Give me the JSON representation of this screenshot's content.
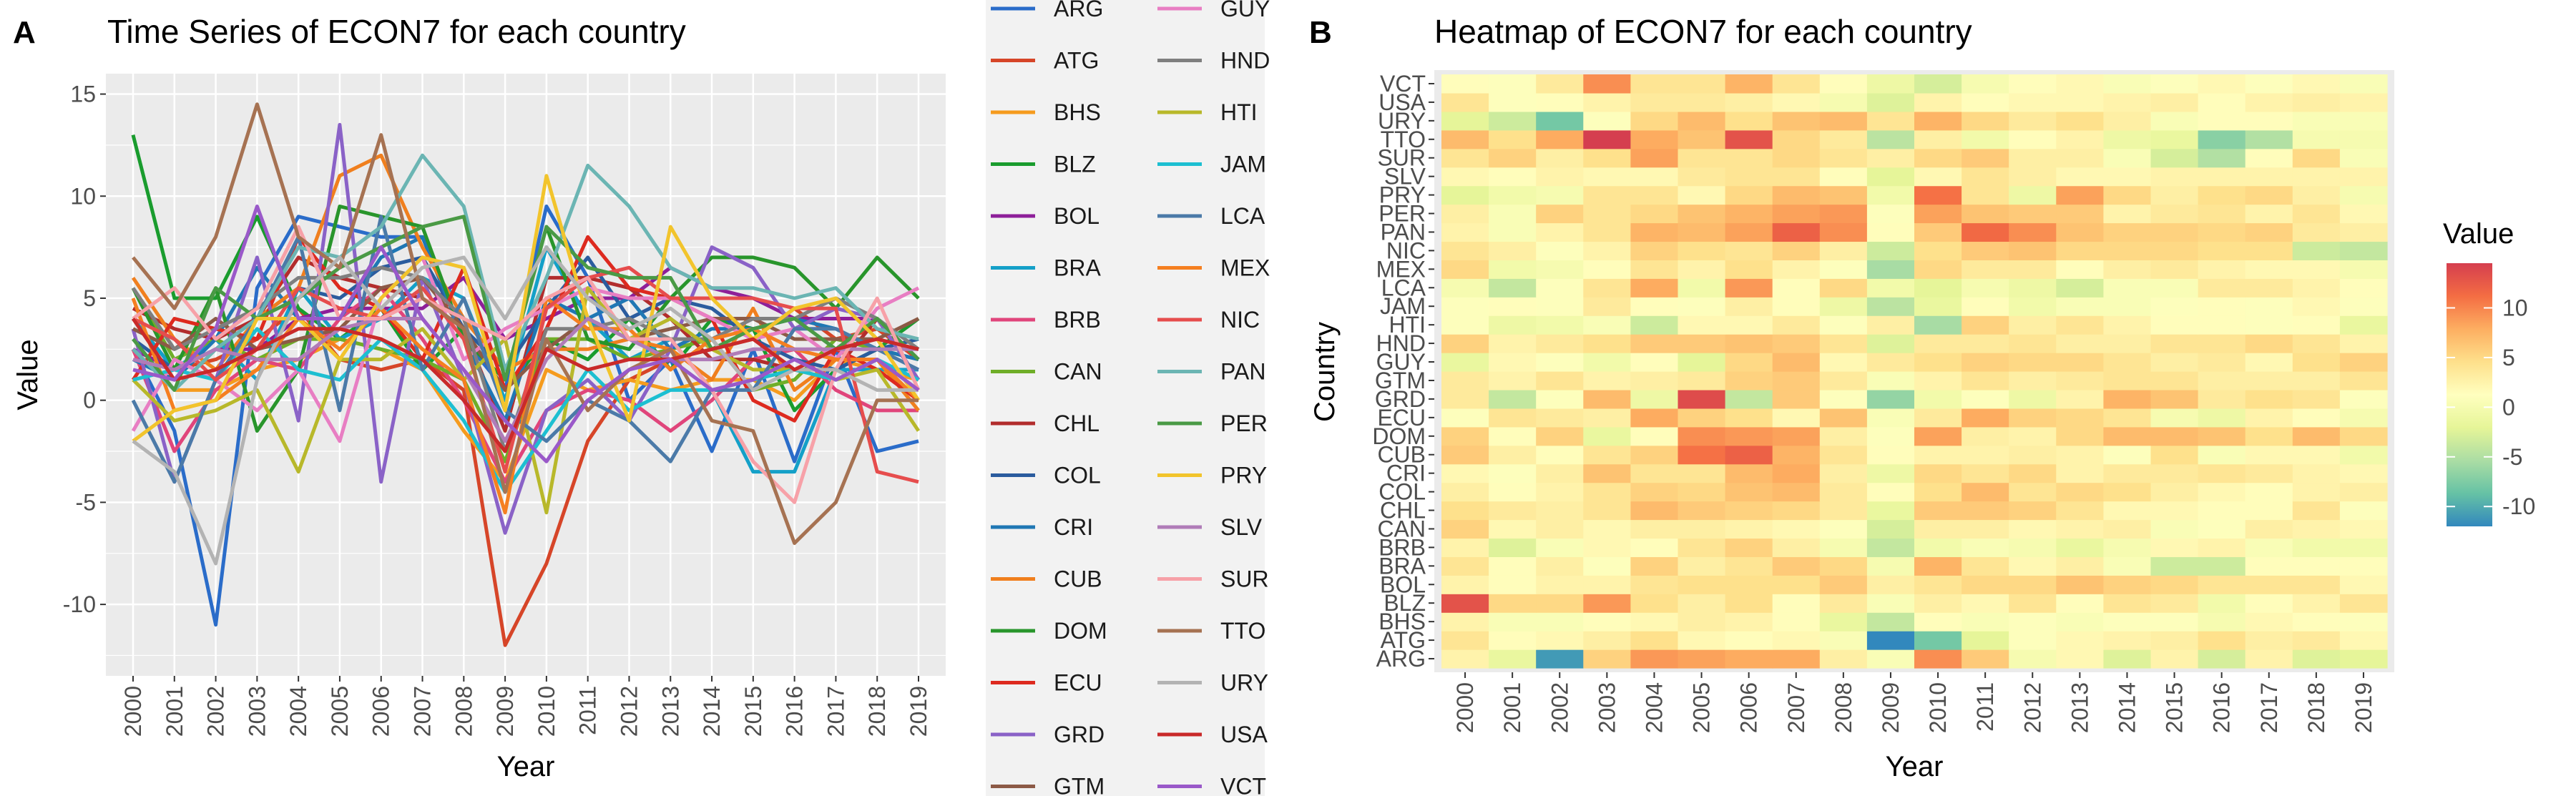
{
  "panel_a": {
    "letter": "A",
    "title": "Time Series of ECON7 for each country",
    "xlabel": "Year",
    "ylabel": "Value"
  },
  "panel_b": {
    "letter": "B",
    "title": "Heatmap of ECON7 for each country",
    "xlabel": "Year",
    "ylabel": "Country",
    "colorbar_title": "Value"
  },
  "colors": {
    "panel_bg": "#ebebeb",
    "grid": "#ffffff",
    "heat_scale": [
      "#3288bd",
      "#66c2a5",
      "#abdda4",
      "#e6f598",
      "#ffffbf",
      "#fee08b",
      "#fdae61",
      "#f46d43",
      "#d53e4f"
    ]
  },
  "chart_data": [
    {
      "type": "line",
      "title": "Time Series of ECON7 for each country",
      "xlabel": "Year",
      "ylabel": "Value",
      "x": [
        2000,
        2001,
        2002,
        2003,
        2004,
        2005,
        2006,
        2007,
        2008,
        2009,
        2010,
        2011,
        2012,
        2013,
        2014,
        2015,
        2016,
        2017,
        2018,
        2019
      ],
      "xlim": [
        2000,
        2019
      ],
      "ylim": [
        -13.5,
        16
      ],
      "yticks": [
        -10,
        -5,
        0,
        5,
        10,
        15
      ],
      "grid": true,
      "legend_position": "right",
      "series": [
        {
          "name": "ARG",
          "color": "#2a6cc9",
          "values": [
            2.5,
            -1.5,
            -11.0,
            5.5,
            9.0,
            8.5,
            8.0,
            8.0,
            3.0,
            0.5,
            9.5,
            6.0,
            0.0,
            2.0,
            -2.5,
            2.5,
            -3.0,
            2.5,
            -2.5,
            -2.0
          ]
        },
        {
          "name": "ATG",
          "color": "#d64528",
          "values": [
            4.0,
            1.5,
            2.0,
            3.0,
            4.5,
            2.0,
            1.5,
            2.0,
            0.5,
            -12.0,
            -8.0,
            -2.0,
            1.0,
            2.0,
            2.5,
            3.0,
            4.5,
            3.0,
            3.5,
            2.0
          ]
        },
        {
          "name": "BHS",
          "color": "#f59b1e",
          "values": [
            2.5,
            0.5,
            0.5,
            1.5,
            2.0,
            3.0,
            2.5,
            1.5,
            -1.5,
            -4.0,
            1.5,
            0.5,
            1.0,
            0.5,
            1.0,
            1.0,
            0.0,
            2.0,
            1.5,
            1.0
          ]
        },
        {
          "name": "BLZ",
          "color": "#1a9c2e",
          "values": [
            13.0,
            5.0,
            5.0,
            9.0,
            4.5,
            3.0,
            4.5,
            1.5,
            3.5,
            0.5,
            3.0,
            2.0,
            4.0,
            1.5,
            4.0,
            3.5,
            -0.5,
            1.5,
            2.5,
            4.0
          ]
        },
        {
          "name": "BOL",
          "color": "#8e1f99",
          "values": [
            2.5,
            1.5,
            2.5,
            2.5,
            4.0,
            4.5,
            4.5,
            4.5,
            6.0,
            3.0,
            4.0,
            5.0,
            5.0,
            6.5,
            5.5,
            5.0,
            4.0,
            4.0,
            4.0,
            2.0
          ]
        },
        {
          "name": "BRA",
          "color": "#14a0c8",
          "values": [
            4.0,
            1.5,
            3.0,
            1.0,
            5.5,
            3.0,
            4.0,
            6.0,
            5.0,
            0.0,
            7.5,
            4.0,
            2.0,
            3.0,
            0.5,
            -3.5,
            -3.5,
            1.5,
            1.5,
            1.5
          ]
        },
        {
          "name": "BRB",
          "color": "#e0457b",
          "values": [
            2.5,
            -2.5,
            0.5,
            2.0,
            1.5,
            4.0,
            5.5,
            3.0,
            0.0,
            -4.0,
            -0.5,
            0.5,
            0.0,
            -1.5,
            0.0,
            2.0,
            2.5,
            0.5,
            -0.5,
            -0.5
          ]
        },
        {
          "name": "CAN",
          "color": "#6fae28",
          "values": [
            5.5,
            2.0,
            3.0,
            2.0,
            3.0,
            3.0,
            2.5,
            2.0,
            1.0,
            -3.0,
            3.0,
            3.0,
            2.0,
            2.5,
            3.0,
            0.5,
            1.0,
            3.0,
            2.5,
            2.0
          ]
        },
        {
          "name": "CHL",
          "color": "#b22d2d",
          "values": [
            4.5,
            3.5,
            3.0,
            4.0,
            7.0,
            6.0,
            5.5,
            5.0,
            3.5,
            -1.5,
            6.0,
            6.0,
            5.5,
            4.0,
            2.0,
            2.0,
            1.5,
            1.5,
            4.0,
            1.0
          ]
        },
        {
          "name": "COL",
          "color": "#2b5c9e",
          "values": [
            3.0,
            1.5,
            2.5,
            4.0,
            5.5,
            5.0,
            6.5,
            7.0,
            3.5,
            1.5,
            4.5,
            7.0,
            4.0,
            5.0,
            4.5,
            3.0,
            2.0,
            1.5,
            2.5,
            3.0
          ]
        },
        {
          "name": "CRI",
          "color": "#1f77b4",
          "values": [
            2.0,
            1.0,
            3.0,
            6.5,
            4.0,
            4.0,
            7.0,
            8.0,
            3.0,
            -1.0,
            5.0,
            4.0,
            5.0,
            2.5,
            3.5,
            3.5,
            4.0,
            3.5,
            2.5,
            2.0
          ]
        },
        {
          "name": "CUB",
          "color": "#f07f1e",
          "values": [
            6.0,
            3.0,
            1.5,
            4.0,
            5.5,
            11.0,
            12.0,
            7.5,
            4.0,
            1.5,
            2.5,
            2.5,
            3.0,
            2.5,
            1.0,
            4.5,
            0.5,
            2.0,
            2.0,
            -0.5
          ]
        },
        {
          "name": "DOM",
          "color": "#28952b",
          "values": [
            5.5,
            1.5,
            5.5,
            -1.5,
            1.5,
            9.5,
            9.0,
            8.5,
            3.0,
            1.0,
            8.5,
            3.0,
            2.5,
            5.0,
            7.0,
            7.0,
            6.5,
            4.5,
            7.0,
            5.0
          ]
        },
        {
          "name": "ECU",
          "color": "#dd2a1f",
          "values": [
            1.0,
            4.0,
            3.5,
            3.0,
            8.0,
            5.5,
            4.5,
            2.0,
            6.5,
            0.5,
            3.5,
            8.0,
            5.5,
            5.0,
            4.0,
            0.0,
            -1.0,
            2.5,
            1.5,
            0.0
          ]
        },
        {
          "name": "GRD",
          "color": "#8a62c7",
          "values": [
            3.5,
            -4.0,
            1.0,
            7.0,
            -1.0,
            13.5,
            -4.0,
            6.0,
            1.0,
            -6.5,
            -0.5,
            1.0,
            -1.0,
            2.5,
            7.5,
            6.5,
            3.5,
            4.5,
            4.0,
            1.0
          ]
        },
        {
          "name": "GTM",
          "color": "#8c5a46",
          "values": [
            3.5,
            2.5,
            4.0,
            2.5,
            3.0,
            3.5,
            5.5,
            6.0,
            3.5,
            0.5,
            2.5,
            4.0,
            3.0,
            3.5,
            4.0,
            4.0,
            3.0,
            3.0,
            3.0,
            4.0
          ]
        },
        {
          "name": "GUY",
          "color": "#e87ec3",
          "values": [
            -1.5,
            2.0,
            1.0,
            -0.5,
            1.5,
            -2.0,
            5.0,
            7.0,
            2.0,
            3.5,
            4.5,
            5.5,
            5.0,
            5.0,
            4.0,
            3.0,
            3.5,
            2.0,
            4.5,
            5.5
          ]
        },
        {
          "name": "HND",
          "color": "#7f7f7f",
          "values": [
            5.5,
            2.5,
            3.5,
            4.5,
            6.0,
            6.0,
            6.5,
            6.0,
            4.0,
            -2.5,
            3.5,
            3.5,
            4.0,
            3.0,
            3.0,
            4.0,
            4.0,
            5.0,
            4.0,
            2.5
          ]
        },
        {
          "name": "HTI",
          "color": "#b8b82a",
          "values": [
            1.0,
            -1.0,
            -0.5,
            0.5,
            -3.5,
            2.0,
            2.0,
            3.5,
            1.0,
            3.0,
            -5.5,
            5.5,
            3.0,
            4.0,
            2.5,
            1.5,
            1.5,
            1.0,
            1.5,
            -1.5
          ]
        },
        {
          "name": "JAM",
          "color": "#1dbfd1",
          "values": [
            1.0,
            1.5,
            1.0,
            3.5,
            1.5,
            1.0,
            3.0,
            1.5,
            -1.0,
            -4.5,
            -1.5,
            1.5,
            -0.5,
            0.5,
            0.5,
            1.0,
            1.5,
            1.0,
            2.0,
            1.0
          ]
        },
        {
          "name": "LCA",
          "color": "#4b7aa8",
          "values": [
            0.0,
            -4.0,
            1.0,
            4.0,
            8.0,
            -0.5,
            9.0,
            1.5,
            5.0,
            -0.5,
            -2.0,
            0.0,
            -1.0,
            -3.0,
            0.5,
            0.5,
            3.5,
            3.5,
            2.5,
            1.5
          ]
        },
        {
          "name": "MEX",
          "color": "#f57f20",
          "values": [
            5.0,
            -0.5,
            0.0,
            1.5,
            4.0,
            2.5,
            4.5,
            2.5,
            1.0,
            -5.5,
            5.0,
            3.5,
            3.5,
            1.5,
            3.0,
            3.5,
            2.5,
            2.0,
            2.0,
            0.0
          ]
        },
        {
          "name": "NIC",
          "color": "#e64d4d",
          "values": [
            4.0,
            3.0,
            1.0,
            2.5,
            5.5,
            4.5,
            4.0,
            5.5,
            3.0,
            -3.5,
            4.5,
            6.0,
            6.5,
            5.0,
            5.0,
            5.0,
            4.5,
            4.5,
            -3.5,
            -4.0
          ]
        },
        {
          "name": "PAN",
          "color": "#6bb5b3",
          "values": [
            2.5,
            0.5,
            2.5,
            4.0,
            7.5,
            7.0,
            8.5,
            12.0,
            9.5,
            1.5,
            6.0,
            11.5,
            9.5,
            6.5,
            5.5,
            5.5,
            5.0,
            5.5,
            3.5,
            3.0
          ]
        },
        {
          "name": "PER",
          "color": "#4a9a45",
          "values": [
            3.0,
            0.5,
            5.5,
            4.0,
            5.0,
            6.5,
            7.5,
            8.5,
            9.0,
            1.0,
            8.5,
            6.5,
            6.0,
            6.0,
            2.5,
            3.5,
            4.0,
            2.5,
            4.0,
            2.0
          ]
        },
        {
          "name": "PRY",
          "color": "#f2c42c",
          "values": [
            -2.0,
            -0.5,
            0.0,
            4.0,
            4.0,
            2.0,
            5.0,
            7.0,
            6.5,
            -0.5,
            11.0,
            4.0,
            -1.0,
            8.5,
            5.0,
            3.0,
            4.5,
            5.0,
            3.0,
            0.0
          ]
        },
        {
          "name": "SLV",
          "color": "#b07cb8",
          "values": [
            2.0,
            1.5,
            2.5,
            2.0,
            2.0,
            3.5,
            4.0,
            4.0,
            1.5,
            -2.0,
            2.0,
            4.0,
            3.0,
            2.0,
            2.0,
            2.5,
            2.5,
            2.5,
            2.5,
            2.5
          ]
        },
        {
          "name": "SUR",
          "color": "#f7a1a8",
          "values": [
            4.0,
            5.5,
            3.0,
            4.5,
            8.5,
            4.0,
            4.0,
            5.0,
            4.0,
            3.0,
            5.0,
            6.0,
            3.0,
            3.0,
            0.5,
            -3.0,
            -5.0,
            1.5,
            5.0,
            0.5
          ]
        },
        {
          "name": "TTO",
          "color": "#a67252",
          "values": [
            7.0,
            4.5,
            8.0,
            14.5,
            8.0,
            6.5,
            13.0,
            5.0,
            3.5,
            -4.5,
            3.0,
            -0.5,
            1.5,
            2.5,
            -1.0,
            -1.5,
            -7.0,
            -5.0,
            0.0,
            0.0
          ]
        },
        {
          "name": "URY",
          "color": "#b3b3b3",
          "values": [
            -2.0,
            -3.5,
            -8.0,
            1.0,
            5.0,
            7.0,
            4.5,
            6.5,
            7.0,
            4.0,
            7.5,
            5.0,
            3.5,
            4.5,
            3.0,
            0.5,
            1.5,
            1.5,
            0.5,
            0.5
          ]
        },
        {
          "name": "USA",
          "color": "#c92a2a",
          "values": [
            4.0,
            1.0,
            1.5,
            2.5,
            3.5,
            3.5,
            3.0,
            2.0,
            0.0,
            -2.5,
            2.5,
            1.5,
            2.0,
            2.0,
            2.5,
            3.0,
            1.5,
            2.5,
            3.0,
            2.5
          ]
        },
        {
          "name": "VCT",
          "color": "#9a59c9",
          "values": [
            1.5,
            1.0,
            3.5,
            9.5,
            4.0,
            4.0,
            7.5,
            4.0,
            1.5,
            -1.0,
            -3.0,
            0.0,
            1.5,
            2.0,
            0.5,
            1.0,
            2.0,
            1.0,
            2.0,
            0.5
          ]
        }
      ]
    },
    {
      "type": "heatmap",
      "title": "Heatmap of ECON7 for each country",
      "xlabel": "Year",
      "ylabel": "Country",
      "legend_title": "Value",
      "legend_ticks": [
        -10,
        -5,
        0,
        5,
        10
      ],
      "legend_position": "right",
      "color_range": [
        -12,
        14.5
      ],
      "x": [
        2000,
        2001,
        2002,
        2003,
        2004,
        2005,
        2006,
        2007,
        2008,
        2009,
        2010,
        2011,
        2012,
        2013,
        2014,
        2015,
        2016,
        2017,
        2018,
        2019
      ],
      "y_note": "rows bottom-to-top",
      "y": [
        "ARG",
        "ATG",
        "BHS",
        "BLZ",
        "BOL",
        "BRA",
        "BRB",
        "CAN",
        "CHL",
        "COL",
        "CRI",
        "CUB",
        "DOM",
        "ECU",
        "GRD",
        "GTM",
        "GUY",
        "HND",
        "HTI",
        "JAM",
        "LCA",
        "MEX",
        "NIC",
        "PAN",
        "PER",
        "PRY",
        "SLV",
        "SUR",
        "TTO",
        "URY",
        "USA",
        "VCT"
      ],
      "values_source": "same per-country series as panel A"
    }
  ],
  "legend_entries": [
    "ARG",
    "ATG",
    "BHS",
    "BLZ",
    "BOL",
    "BRA",
    "BRB",
    "CAN",
    "CHL",
    "COL",
    "CRI",
    "CUB",
    "DOM",
    "ECU",
    "GRD",
    "GTM",
    "GUY",
    "HND",
    "HTI",
    "JAM",
    "LCA",
    "MEX",
    "NIC",
    "PAN",
    "PER",
    "PRY",
    "SLV",
    "SUR",
    "TTO",
    "URY",
    "USA",
    "VCT"
  ]
}
